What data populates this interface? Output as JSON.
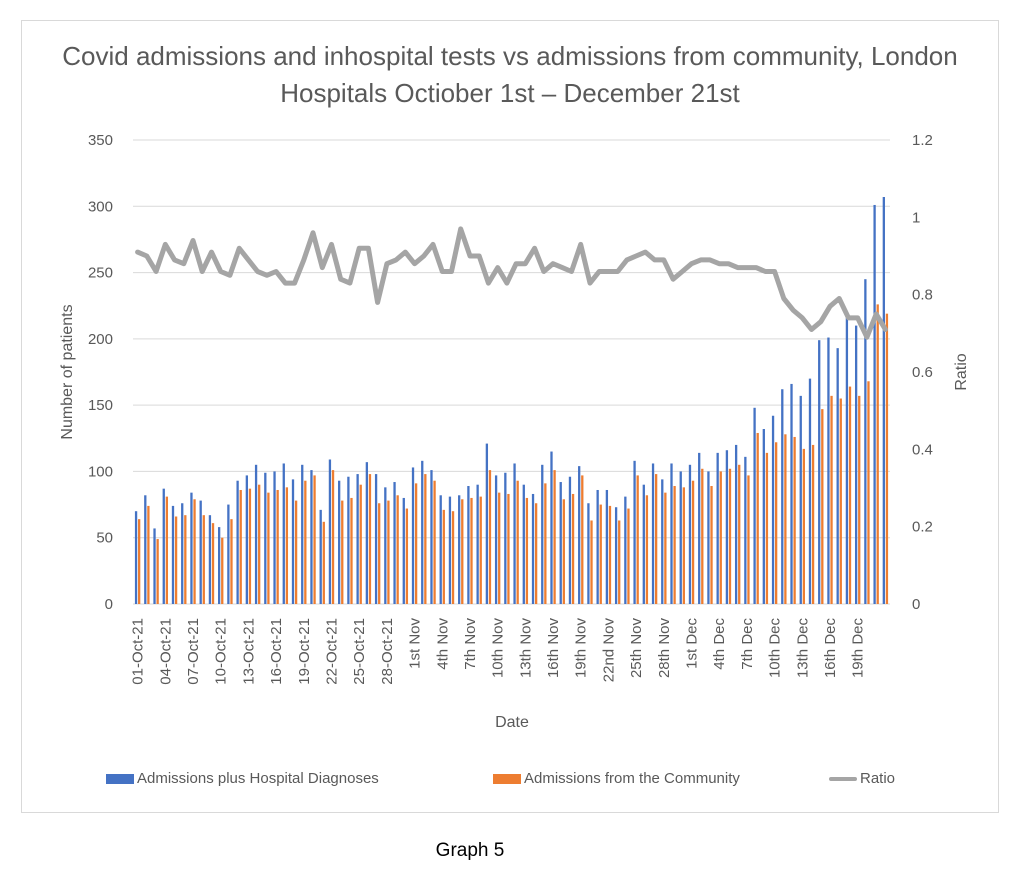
{
  "caption": "Graph 5",
  "chart_data": {
    "type": "bar+line",
    "title": "Covid admissions and inhospital tests vs admissions from community, London Hospitals Octiober 1st – December 21st",
    "xlabel": "Date",
    "ylabel": "Number of patients",
    "y2label": "Ratio",
    "ylim": [
      0,
      350
    ],
    "y2lim": [
      0,
      1.2
    ],
    "yticks": [
      "0",
      "50",
      "100",
      "150",
      "200",
      "250",
      "300",
      "350"
    ],
    "y2ticks": [
      "0",
      "0.2",
      "0.4",
      "0.6",
      "0.8",
      "1",
      "1.2"
    ],
    "grid": true,
    "legend_position": "bottom",
    "xtick_labels": [
      "01-Oct-21",
      "04-Oct-21",
      "07-Oct-21",
      "10-Oct-21",
      "13-Oct-21",
      "16-Oct-21",
      "19-Oct-21",
      "22-Oct-21",
      "25-Oct-21",
      "28-Oct-21",
      "1st Nov",
      "4th Nov",
      "7th Nov",
      "10th Nov",
      "13th Nov",
      "16th Nov",
      "19th Nov",
      "22nd Nov",
      "25th Nov",
      "28th Nov",
      "1st Dec",
      "4th Dec",
      "7th Dec",
      "10th Dec",
      "13th Dec",
      "16th Dec",
      "19th Dec"
    ],
    "xtick_every": 3,
    "series": [
      {
        "name": "Admissions plus Hospital Diagnoses",
        "type": "bar",
        "axis": "left",
        "color": "#4472c4",
        "values": [
          70,
          82,
          57,
          87,
          74,
          76,
          84,
          78,
          67,
          58,
          75,
          93,
          97,
          105,
          99,
          100,
          106,
          94,
          105,
          101,
          71,
          109,
          93,
          96,
          98,
          107,
          98,
          88,
          92,
          80,
          103,
          108,
          101,
          82,
          81,
          82,
          89,
          90,
          121,
          97,
          99,
          106,
          90,
          83,
          105,
          115,
          92,
          96,
          104,
          76,
          86,
          86,
          73,
          81,
          108,
          90,
          106,
          94,
          106,
          100,
          105,
          114,
          100,
          114,
          116,
          120,
          111,
          148,
          132,
          142,
          162,
          166,
          157,
          170,
          199,
          201,
          193,
          216,
          210,
          245,
          301,
          307
        ]
      },
      {
        "name": "Admissions from the Community",
        "type": "bar",
        "axis": "left",
        "color": "#ed7d31",
        "values": [
          64,
          74,
          49,
          81,
          66,
          67,
          79,
          67,
          61,
          50,
          64,
          86,
          87,
          90,
          84,
          86,
          88,
          78,
          93,
          97,
          62,
          101,
          78,
          80,
          90,
          98,
          76,
          78,
          82,
          72,
          91,
          98,
          93,
          71,
          70,
          79,
          80,
          81,
          101,
          84,
          83,
          93,
          80,
          76,
          91,
          101,
          79,
          83,
          97,
          63,
          75,
          74,
          63,
          72,
          97,
          82,
          98,
          84,
          89,
          88,
          93,
          102,
          89,
          100,
          102,
          105,
          97,
          129,
          114,
          122,
          128,
          126,
          117,
          120,
          147,
          157,
          155,
          164,
          157,
          168,
          226,
          219
        ]
      },
      {
        "name": "Ratio",
        "type": "line",
        "axis": "right",
        "color": "#a5a5a5",
        "values": [
          0.91,
          0.9,
          0.86,
          0.93,
          0.89,
          0.88,
          0.94,
          0.86,
          0.91,
          0.86,
          0.85,
          0.92,
          0.89,
          0.86,
          0.85,
          0.86,
          0.83,
          0.83,
          0.89,
          0.96,
          0.87,
          0.93,
          0.84,
          0.83,
          0.92,
          0.92,
          0.78,
          0.88,
          0.89,
          0.91,
          0.88,
          0.9,
          0.93,
          0.86,
          0.86,
          0.97,
          0.9,
          0.9,
          0.83,
          0.87,
          0.83,
          0.88,
          0.88,
          0.92,
          0.86,
          0.88,
          0.87,
          0.86,
          0.93,
          0.83,
          0.86,
          0.86,
          0.86,
          0.89,
          0.9,
          0.91,
          0.89,
          0.89,
          0.84,
          0.86,
          0.88,
          0.89,
          0.89,
          0.88,
          0.88,
          0.87,
          0.87,
          0.87,
          0.86,
          0.86,
          0.79,
          0.76,
          0.74,
          0.71,
          0.73,
          0.77,
          0.79,
          0.74,
          0.74,
          0.69,
          0.75,
          0.71
        ]
      }
    ]
  }
}
